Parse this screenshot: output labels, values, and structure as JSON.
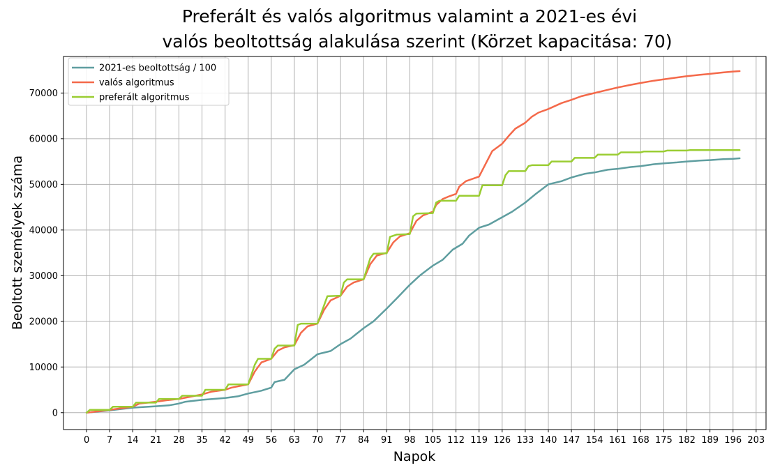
{
  "chart_data": {
    "type": "line",
    "title_lines": [
      "Preferált és valós algoritmus valamint a 2021-es évi",
      "valós beoltottság alakulása szerint (Körzet kapacitása: 70)"
    ],
    "xlabel": "Napok",
    "ylabel": "Beoltott személyek száma",
    "xlim": [
      -7,
      206
    ],
    "ylim": [
      -3700,
      78000
    ],
    "x_ticks": [
      0,
      7,
      14,
      21,
      28,
      35,
      42,
      49,
      56,
      63,
      70,
      77,
      84,
      91,
      98,
      105,
      112,
      119,
      126,
      133,
      140,
      147,
      154,
      161,
      168,
      175,
      182,
      189,
      196,
      203
    ],
    "y_ticks": [
      0,
      10000,
      20000,
      30000,
      40000,
      50000,
      60000,
      70000
    ],
    "grid": true,
    "legend_position": "top-left",
    "series": [
      {
        "name": "2021-es beoltottság / 100",
        "color": "#5f9ea0",
        "points": [
          [
            0,
            0
          ],
          [
            7,
            500
          ],
          [
            14,
            1100
          ],
          [
            21,
            1400
          ],
          [
            25,
            1600
          ],
          [
            28,
            2000
          ],
          [
            30,
            2400
          ],
          [
            35,
            2800
          ],
          [
            42,
            3200
          ],
          [
            46,
            3600
          ],
          [
            49,
            4200
          ],
          [
            53,
            4800
          ],
          [
            56,
            5500
          ],
          [
            57,
            6700
          ],
          [
            60,
            7200
          ],
          [
            63,
            9500
          ],
          [
            66,
            10500
          ],
          [
            70,
            12800
          ],
          [
            74,
            13500
          ],
          [
            77,
            15000
          ],
          [
            80,
            16200
          ],
          [
            84,
            18500
          ],
          [
            87,
            20000
          ],
          [
            91,
            22800
          ],
          [
            94,
            25000
          ],
          [
            98,
            28000
          ],
          [
            101,
            30000
          ],
          [
            105,
            32200
          ],
          [
            108,
            33500
          ],
          [
            111,
            35700
          ],
          [
            114,
            37000
          ],
          [
            116,
            38800
          ],
          [
            119,
            40500
          ],
          [
            122,
            41200
          ],
          [
            126,
            42800
          ],
          [
            129,
            44000
          ],
          [
            133,
            46000
          ],
          [
            136,
            47800
          ],
          [
            140,
            50000
          ],
          [
            144,
            50700
          ],
          [
            147,
            51500
          ],
          [
            151,
            52300
          ],
          [
            154,
            52600
          ],
          [
            158,
            53200
          ],
          [
            161,
            53400
          ],
          [
            165,
            53800
          ],
          [
            168,
            54000
          ],
          [
            172,
            54400
          ],
          [
            175,
            54600
          ],
          [
            179,
            54800
          ],
          [
            182,
            55000
          ],
          [
            186,
            55200
          ],
          [
            189,
            55300
          ],
          [
            193,
            55500
          ],
          [
            196,
            55600
          ],
          [
            198,
            55700
          ]
        ]
      },
      {
        "name": "valós algoritmus",
        "color": "#f4694a",
        "points": [
          [
            0,
            0
          ],
          [
            7,
            600
          ],
          [
            14,
            1300
          ],
          [
            16,
            2000
          ],
          [
            21,
            2400
          ],
          [
            24,
            2700
          ],
          [
            28,
            3000
          ],
          [
            33,
            3700
          ],
          [
            35,
            4000
          ],
          [
            38,
            4600
          ],
          [
            42,
            5000
          ],
          [
            44,
            5500
          ],
          [
            49,
            6200
          ],
          [
            51,
            9000
          ],
          [
            53,
            11000
          ],
          [
            56,
            11800
          ],
          [
            58,
            13600
          ],
          [
            60,
            14300
          ],
          [
            63,
            14800
          ],
          [
            65,
            17500
          ],
          [
            67,
            18900
          ],
          [
            70,
            19500
          ],
          [
            72,
            22500
          ],
          [
            74,
            24600
          ],
          [
            77,
            25600
          ],
          [
            79,
            27600
          ],
          [
            81,
            28500
          ],
          [
            84,
            29200
          ],
          [
            86,
            32500
          ],
          [
            88,
            34400
          ],
          [
            91,
            35000
          ],
          [
            93,
            37300
          ],
          [
            95,
            38600
          ],
          [
            98,
            39300
          ],
          [
            100,
            42000
          ],
          [
            102,
            43200
          ],
          [
            105,
            44000
          ],
          [
            106,
            45500
          ],
          [
            108,
            46800
          ],
          [
            110,
            47400
          ],
          [
            112,
            47900
          ],
          [
            113,
            49500
          ],
          [
            115,
            50700
          ],
          [
            119,
            51700
          ],
          [
            121,
            54500
          ],
          [
            123,
            57300
          ],
          [
            126,
            58900
          ],
          [
            128,
            60600
          ],
          [
            130,
            62200
          ],
          [
            133,
            63500
          ],
          [
            135,
            64800
          ],
          [
            137,
            65700
          ],
          [
            140,
            66500
          ],
          [
            144,
            67800
          ],
          [
            147,
            68500
          ],
          [
            150,
            69300
          ],
          [
            154,
            70000
          ],
          [
            158,
            70700
          ],
          [
            161,
            71200
          ],
          [
            165,
            71800
          ],
          [
            168,
            72200
          ],
          [
            172,
            72700
          ],
          [
            175,
            73000
          ],
          [
            179,
            73400
          ],
          [
            182,
            73700
          ],
          [
            186,
            74000
          ],
          [
            189,
            74200
          ],
          [
            193,
            74500
          ],
          [
            196,
            74700
          ],
          [
            198,
            74800
          ]
        ]
      },
      {
        "name": "preferált algoritmus",
        "color": "#9acd32",
        "points": [
          [
            0,
            0
          ],
          [
            1,
            600
          ],
          [
            7,
            600
          ],
          [
            8,
            1300
          ],
          [
            14,
            1300
          ],
          [
            15,
            2200
          ],
          [
            21,
            2200
          ],
          [
            22,
            3000
          ],
          [
            28,
            3000
          ],
          [
            29,
            3700
          ],
          [
            35,
            3700
          ],
          [
            36,
            5000
          ],
          [
            42,
            5000
          ],
          [
            43,
            6200
          ],
          [
            49,
            6200
          ],
          [
            51,
            10500
          ],
          [
            52,
            11800
          ],
          [
            56,
            11800
          ],
          [
            57,
            14000
          ],
          [
            58,
            14700
          ],
          [
            63,
            14700
          ],
          [
            64,
            19200
          ],
          [
            65,
            19500
          ],
          [
            70,
            19500
          ],
          [
            72,
            23500
          ],
          [
            73,
            25500
          ],
          [
            77,
            25600
          ],
          [
            78,
            28500
          ],
          [
            79,
            29200
          ],
          [
            84,
            29200
          ],
          [
            86,
            33800
          ],
          [
            87,
            34800
          ],
          [
            91,
            34900
          ],
          [
            92,
            38500
          ],
          [
            94,
            39000
          ],
          [
            98,
            39100
          ],
          [
            99,
            43000
          ],
          [
            100,
            43600
          ],
          [
            105,
            43700
          ],
          [
            106,
            46000
          ],
          [
            107,
            46400
          ],
          [
            112,
            46400
          ],
          [
            113,
            47500
          ],
          [
            119,
            47500
          ],
          [
            120,
            49800
          ],
          [
            126,
            49800
          ],
          [
            127,
            52000
          ],
          [
            128,
            52900
          ],
          [
            133,
            52900
          ],
          [
            134,
            54000
          ],
          [
            135,
            54200
          ],
          [
            140,
            54200
          ],
          [
            141,
            55000
          ],
          [
            147,
            55000
          ],
          [
            148,
            55800
          ],
          [
            154,
            55800
          ],
          [
            155,
            56500
          ],
          [
            161,
            56500
          ],
          [
            162,
            57000
          ],
          [
            168,
            57000
          ],
          [
            169,
            57200
          ],
          [
            175,
            57200
          ],
          [
            176,
            57400
          ],
          [
            182,
            57400
          ],
          [
            183,
            57500
          ],
          [
            198,
            57500
          ]
        ]
      }
    ]
  }
}
